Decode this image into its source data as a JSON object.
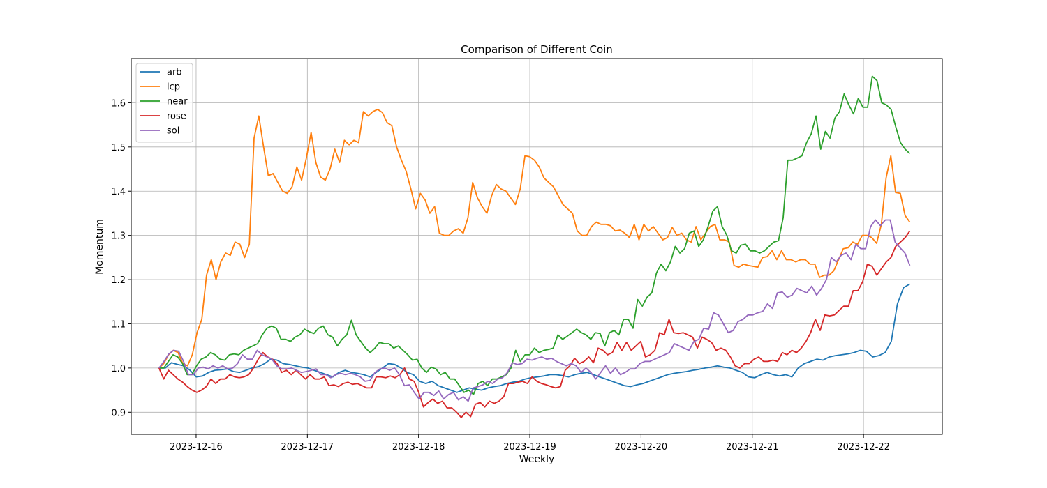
{
  "chart_data": {
    "type": "line",
    "title": "Comparison of Different Coin",
    "xlabel": "Weekly",
    "ylabel": "Momentum",
    "x_start": "2023-12-15T16:00",
    "x_end": "2023-12-22T10:00",
    "xlim": [
      "2023-12-15T10:00",
      "2023-12-22T17:00"
    ],
    "ylim": [
      0.85,
      1.7
    ],
    "x_ticks": [
      "2023-12-16",
      "2023-12-17",
      "2023-12-18",
      "2023-12-19",
      "2023-12-20",
      "2023-12-21",
      "2023-12-22"
    ],
    "y_ticks": [
      0.9,
      1.0,
      1.1,
      1.2,
      1.3,
      1.4,
      1.5,
      1.6
    ],
    "grid": true,
    "legend_position": "top-left",
    "series": [
      {
        "name": "arb",
        "color": "#1f77b4",
        "values": [
          1.0,
          1.0,
          1.012,
          1.008,
          1.005,
          0.995,
          0.98,
          0.982,
          0.99,
          0.995,
          0.996,
          0.998,
          0.992,
          0.99,
          0.995,
          1.0,
          1.003,
          1.01,
          1.02,
          1.018,
          1.01,
          1.008,
          1.005,
          1.002,
          1.0,
          0.995,
          0.99,
          0.985,
          0.98,
          0.99,
          0.995,
          0.99,
          0.988,
          0.985,
          0.98,
          0.99,
          1.0,
          1.01,
          1.008,
          1.0,
          0.99,
          0.985,
          0.97,
          0.965,
          0.97,
          0.96,
          0.955,
          0.95,
          0.945,
          0.95,
          0.955,
          0.952,
          0.95,
          0.955,
          0.958,
          0.96,
          0.965,
          0.968,
          0.97,
          0.975,
          0.978,
          0.98,
          0.982,
          0.985,
          0.985,
          0.983,
          0.98,
          0.985,
          0.988,
          0.99,
          0.985,
          0.98,
          0.975,
          0.97,
          0.965,
          0.96,
          0.958,
          0.962,
          0.965,
          0.97,
          0.975,
          0.98,
          0.985,
          0.988,
          0.99,
          0.992,
          0.995,
          0.997,
          1.0,
          1.002,
          1.005,
          1.002,
          1.0,
          0.995,
          0.99,
          0.98,
          0.978,
          0.985,
          0.99,
          0.985,
          0.982,
          0.985,
          0.98,
          1.0,
          1.01,
          1.015,
          1.02,
          1.018,
          1.025,
          1.028,
          1.03,
          1.032,
          1.035,
          1.04,
          1.038,
          1.025,
          1.028,
          1.035,
          1.06,
          1.145,
          1.182,
          1.19
        ]
      },
      {
        "name": "icp",
        "color": "#ff7f0e",
        "values": [
          1.0,
          1.01,
          1.03,
          1.04,
          1.035,
          1.01,
          1.005,
          1.03,
          1.08,
          1.11,
          1.21,
          1.245,
          1.2,
          1.24,
          1.26,
          1.255,
          1.285,
          1.28,
          1.25,
          1.28,
          1.52,
          1.57,
          1.5,
          1.435,
          1.44,
          1.42,
          1.4,
          1.395,
          1.41,
          1.455,
          1.425,
          1.475,
          1.533,
          1.465,
          1.432,
          1.425,
          1.45,
          1.495,
          1.465,
          1.515,
          1.505,
          1.515,
          1.51,
          1.58,
          1.57,
          1.58,
          1.585,
          1.578,
          1.555,
          1.548,
          1.5,
          1.47,
          1.445,
          1.405,
          1.36,
          1.395,
          1.38,
          1.35,
          1.365,
          1.305,
          1.3,
          1.3,
          1.31,
          1.315,
          1.305,
          1.34,
          1.42,
          1.385,
          1.365,
          1.35,
          1.39,
          1.415,
          1.405,
          1.4,
          1.385,
          1.37,
          1.405,
          1.48,
          1.478,
          1.47,
          1.455,
          1.43,
          1.42,
          1.41,
          1.39,
          1.37,
          1.36,
          1.35,
          1.31,
          1.3,
          1.3,
          1.32,
          1.33,
          1.325,
          1.325,
          1.322,
          1.31,
          1.312,
          1.305,
          1.295,
          1.325,
          1.29,
          1.325,
          1.31,
          1.32,
          1.305,
          1.29,
          1.295,
          1.318,
          1.3,
          1.305,
          1.29,
          1.285,
          1.32,
          1.29,
          1.305,
          1.32,
          1.325,
          1.29,
          1.29,
          1.285,
          1.232,
          1.228,
          1.235,
          1.232,
          1.23,
          1.228,
          1.25,
          1.252,
          1.265,
          1.245,
          1.265,
          1.245,
          1.245,
          1.24,
          1.245,
          1.245,
          1.235,
          1.235,
          1.205,
          1.21,
          1.21,
          1.22,
          1.245,
          1.27,
          1.272,
          1.285,
          1.28,
          1.3,
          1.3,
          1.295,
          1.282,
          1.325,
          1.43,
          1.48,
          1.397,
          1.395,
          1.345,
          1.33
        ]
      },
      {
        "name": "near",
        "color": "#2ca02c",
        "values": [
          1.0,
          1.0,
          1.015,
          1.03,
          1.025,
          1.01,
          0.985,
          0.985,
          1.005,
          1.02,
          1.025,
          1.035,
          1.03,
          1.02,
          1.018,
          1.03,
          1.032,
          1.03,
          1.04,
          1.045,
          1.05,
          1.055,
          1.075,
          1.09,
          1.095,
          1.09,
          1.065,
          1.065,
          1.06,
          1.07,
          1.075,
          1.088,
          1.082,
          1.078,
          1.09,
          1.095,
          1.075,
          1.07,
          1.05,
          1.065,
          1.075,
          1.108,
          1.075,
          1.06,
          1.045,
          1.035,
          1.045,
          1.058,
          1.055,
          1.055,
          1.045,
          1.05,
          1.04,
          1.03,
          1.018,
          1.02,
          1.0,
          0.99,
          1.002,
          0.998,
          0.985,
          0.99,
          0.975,
          0.975,
          0.96,
          0.945,
          0.95,
          0.94,
          0.965,
          0.97,
          0.96,
          0.975,
          0.975,
          0.98,
          0.985,
          1.0,
          1.04,
          1.015,
          1.03,
          1.03,
          1.045,
          1.035,
          1.04,
          1.042,
          1.045,
          1.075,
          1.065,
          1.072,
          1.08,
          1.088,
          1.08,
          1.075,
          1.065,
          1.08,
          1.078,
          1.05,
          1.08,
          1.085,
          1.075,
          1.11,
          1.11,
          1.09,
          1.155,
          1.14,
          1.16,
          1.17,
          1.215,
          1.235,
          1.22,
          1.24,
          1.275,
          1.26,
          1.27,
          1.305,
          1.31,
          1.275,
          1.29,
          1.32,
          1.355,
          1.365,
          1.32,
          1.3,
          1.265,
          1.26,
          1.278,
          1.28,
          1.265,
          1.265,
          1.26,
          1.265,
          1.275,
          1.285,
          1.288,
          1.34,
          1.47,
          1.47,
          1.475,
          1.48,
          1.51,
          1.53,
          1.57,
          1.495,
          1.535,
          1.52,
          1.565,
          1.58,
          1.62,
          1.595,
          1.575,
          1.61,
          1.59,
          1.59,
          1.66,
          1.65,
          1.6,
          1.595,
          1.585,
          1.545,
          1.51,
          1.495,
          1.485
        ]
      },
      {
        "name": "rose",
        "color": "#d62728",
        "values": [
          1.0,
          0.975,
          0.995,
          0.985,
          0.975,
          0.968,
          0.958,
          0.95,
          0.945,
          0.95,
          0.958,
          0.975,
          0.965,
          0.975,
          0.975,
          0.985,
          0.98,
          0.978,
          0.98,
          0.985,
          1.0,
          1.02,
          1.035,
          1.025,
          1.02,
          1.01,
          0.99,
          0.995,
          0.985,
          0.995,
          0.985,
          0.975,
          0.985,
          0.975,
          0.975,
          0.98,
          0.96,
          0.962,
          0.958,
          0.965,
          0.968,
          0.963,
          0.965,
          0.96,
          0.955,
          0.955,
          0.98,
          0.98,
          0.978,
          0.982,
          0.978,
          0.985,
          1.0,
          0.975,
          0.97,
          0.945,
          0.912,
          0.922,
          0.93,
          0.92,
          0.925,
          0.91,
          0.91,
          0.9,
          0.888,
          0.9,
          0.89,
          0.918,
          0.922,
          0.912,
          0.925,
          0.92,
          0.925,
          0.935,
          0.965,
          0.965,
          0.968,
          0.97,
          0.965,
          0.98,
          0.97,
          0.965,
          0.962,
          0.958,
          0.955,
          0.958,
          0.995,
          1.005,
          1.022,
          1.01,
          1.015,
          1.025,
          1.012,
          1.045,
          1.04,
          1.03,
          1.035,
          1.058,
          1.04,
          1.058,
          1.04,
          1.05,
          1.06,
          1.025,
          1.03,
          1.04,
          1.08,
          1.075,
          1.11,
          1.08,
          1.078,
          1.08,
          1.075,
          1.07,
          1.045,
          1.07,
          1.065,
          1.058,
          1.04,
          1.045,
          1.04,
          1.025,
          1.005,
          1.0,
          1.01,
          1.01,
          1.02,
          1.025,
          1.015,
          1.015,
          1.018,
          1.015,
          1.035,
          1.03,
          1.04,
          1.035,
          1.045,
          1.06,
          1.08,
          1.11,
          1.085,
          1.12,
          1.118,
          1.12,
          1.13,
          1.14,
          1.14,
          1.175,
          1.175,
          1.195,
          1.235,
          1.23,
          1.21,
          1.225,
          1.24,
          1.25,
          1.275,
          1.285,
          1.295,
          1.31
        ]
      },
      {
        "name": "sol",
        "color": "#9467bd",
        "values": [
          1.0,
          1.015,
          1.032,
          1.04,
          1.038,
          1.015,
          0.985,
          0.985,
          1.0,
          1.002,
          0.998,
          1.005,
          1.0,
          1.005,
          0.998,
          1.0,
          1.01,
          1.03,
          1.02,
          1.02,
          1.04,
          1.03,
          1.025,
          1.02,
          1.005,
          0.998,
          0.998,
          1.0,
          0.995,
          0.99,
          0.992,
          0.995,
          0.998,
          0.985,
          0.985,
          0.978,
          0.985,
          0.988,
          0.985,
          0.988,
          0.985,
          0.98,
          0.97,
          0.972,
          0.99,
          0.998,
          1.0,
          0.995,
          1.0,
          0.985,
          0.96,
          0.962,
          0.945,
          0.93,
          0.945,
          0.945,
          0.938,
          0.948,
          0.93,
          0.94,
          0.945,
          0.928,
          0.935,
          0.925,
          0.955,
          0.958,
          0.962,
          0.97,
          0.965,
          0.975,
          0.978,
          0.99,
          1.012,
          1.008,
          1.01,
          1.02,
          1.018,
          1.022,
          1.025,
          1.02,
          1.022,
          1.015,
          1.01,
          1.005,
          1.01,
          1.005,
          0.99,
          1.0,
          0.99,
          0.975,
          0.99,
          1.005,
          0.988,
          1.0,
          0.985,
          0.99,
          0.998,
          0.998,
          1.01,
          1.015,
          1.015,
          1.02,
          1.025,
          1.03,
          1.035,
          1.055,
          1.05,
          1.045,
          1.04,
          1.06,
          1.065,
          1.09,
          1.088,
          1.125,
          1.12,
          1.1,
          1.08,
          1.085,
          1.105,
          1.11,
          1.12,
          1.12,
          1.125,
          1.128,
          1.145,
          1.135,
          1.17,
          1.172,
          1.16,
          1.165,
          1.18,
          1.175,
          1.17,
          1.185,
          1.165,
          1.18,
          1.2,
          1.25,
          1.24,
          1.255,
          1.26,
          1.245,
          1.28,
          1.27,
          1.27,
          1.32,
          1.335,
          1.322,
          1.335,
          1.335,
          1.285,
          1.272,
          1.26,
          1.232
        ]
      }
    ]
  }
}
